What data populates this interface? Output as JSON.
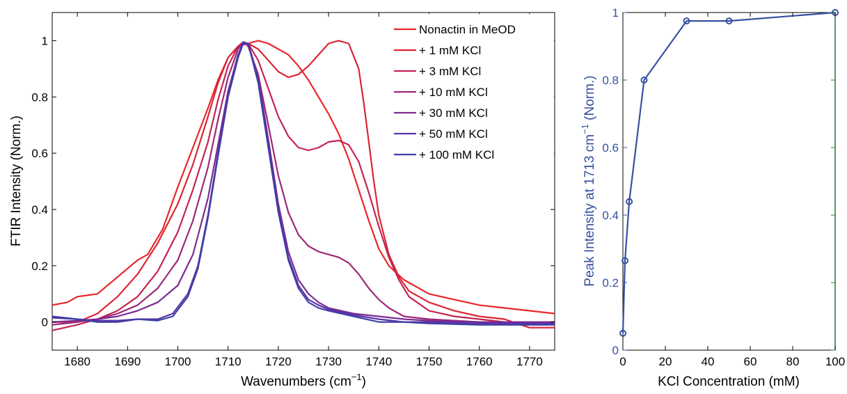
{
  "chart_data": [
    {
      "type": "line",
      "xlabel": "Wavenumbers (cm",
      "xlabel_sup": "−1",
      "xlabel_tail": ")",
      "ylabel": "FTIR Intensity (Norm.)",
      "xlim": [
        1675,
        1775
      ],
      "ylim": [
        -0.1,
        1.1
      ],
      "xticks": [
        "1680",
        "1690",
        "1700",
        "1710",
        "1720",
        "1730",
        "1740",
        "1750",
        "1760",
        "1770"
      ],
      "yticks": [
        "0",
        "0.2",
        "0.4",
        "0.6",
        "0.8",
        "1"
      ],
      "legend_position": "top-right",
      "series": [
        {
          "name": "Nonactin in MeOD",
          "color": "#e8262b",
          "points": [
            [
              1675,
              0.06
            ],
            [
              1678,
              0.07
            ],
            [
              1680,
              0.09
            ],
            [
              1684,
              0.1
            ],
            [
              1688,
              0.16
            ],
            [
              1692,
              0.22
            ],
            [
              1694,
              0.24
            ],
            [
              1697,
              0.33
            ],
            [
              1700,
              0.48
            ],
            [
              1703,
              0.62
            ],
            [
              1706,
              0.76
            ],
            [
              1708,
              0.86
            ],
            [
              1710,
              0.94
            ],
            [
              1712,
              0.98
            ],
            [
              1714,
              0.99
            ],
            [
              1716,
              1.0
            ],
            [
              1718,
              0.99
            ],
            [
              1720,
              0.97
            ],
            [
              1722,
              0.95
            ],
            [
              1724,
              0.91
            ],
            [
              1726,
              0.86
            ],
            [
              1728,
              0.8
            ],
            [
              1730,
              0.74
            ],
            [
              1732,
              0.67
            ],
            [
              1734,
              0.58
            ],
            [
              1736,
              0.47
            ],
            [
              1738,
              0.36
            ],
            [
              1740,
              0.26
            ],
            [
              1742,
              0.2
            ],
            [
              1745,
              0.15
            ],
            [
              1750,
              0.1
            ],
            [
              1755,
              0.08
            ],
            [
              1760,
              0.06
            ],
            [
              1765,
              0.05
            ],
            [
              1770,
              0.04
            ],
            [
              1775,
              0.03
            ]
          ]
        },
        {
          "name": "+ 1 mM KCl",
          "color": "#dc2435",
          "points": [
            [
              1675,
              0.0
            ],
            [
              1680,
              0.0
            ],
            [
              1684,
              0.03
            ],
            [
              1688,
              0.09
            ],
            [
              1692,
              0.17
            ],
            [
              1696,
              0.28
            ],
            [
              1700,
              0.42
            ],
            [
              1703,
              0.56
            ],
            [
              1706,
              0.73
            ],
            [
              1708,
              0.85
            ],
            [
              1710,
              0.94
            ],
            [
              1712,
              0.98
            ],
            [
              1713,
              0.99
            ],
            [
              1714,
              0.99
            ],
            [
              1716,
              0.97
            ],
            [
              1718,
              0.93
            ],
            [
              1720,
              0.89
            ],
            [
              1722,
              0.87
            ],
            [
              1724,
              0.88
            ],
            [
              1726,
              0.91
            ],
            [
              1728,
              0.95
            ],
            [
              1730,
              0.99
            ],
            [
              1732,
              1.0
            ],
            [
              1734,
              0.99
            ],
            [
              1736,
              0.9
            ],
            [
              1737,
              0.78
            ],
            [
              1738,
              0.64
            ],
            [
              1739,
              0.5
            ],
            [
              1740,
              0.38
            ],
            [
              1742,
              0.24
            ],
            [
              1744,
              0.16
            ],
            [
              1746,
              0.11
            ],
            [
              1750,
              0.07
            ],
            [
              1755,
              0.04
            ],
            [
              1760,
              0.02
            ],
            [
              1765,
              0.01
            ],
            [
              1770,
              -0.02
            ],
            [
              1775,
              -0.02
            ]
          ]
        },
        {
          "name": "+ 3 mM KCl",
          "color": "#c42452",
          "points": [
            [
              1675,
              -0.03
            ],
            [
              1680,
              -0.01
            ],
            [
              1684,
              0.01
            ],
            [
              1688,
              0.04
            ],
            [
              1692,
              0.09
            ],
            [
              1696,
              0.18
            ],
            [
              1700,
              0.32
            ],
            [
              1703,
              0.47
            ],
            [
              1706,
              0.64
            ],
            [
              1708,
              0.79
            ],
            [
              1710,
              0.91
            ],
            [
              1712,
              0.98
            ],
            [
              1713,
              0.995
            ],
            [
              1714,
              0.99
            ],
            [
              1716,
              0.93
            ],
            [
              1718,
              0.83
            ],
            [
              1720,
              0.73
            ],
            [
              1722,
              0.66
            ],
            [
              1724,
              0.62
            ],
            [
              1726,
              0.61
            ],
            [
              1728,
              0.62
            ],
            [
              1730,
              0.64
            ],
            [
              1732,
              0.645
            ],
            [
              1734,
              0.63
            ],
            [
              1736,
              0.57
            ],
            [
              1738,
              0.46
            ],
            [
              1740,
              0.34
            ],
            [
              1742,
              0.23
            ],
            [
              1744,
              0.15
            ],
            [
              1746,
              0.09
            ],
            [
              1750,
              0.04
            ],
            [
              1755,
              0.02
            ],
            [
              1760,
              0.01
            ],
            [
              1765,
              0.0
            ],
            [
              1770,
              0.0
            ],
            [
              1775,
              0.0
            ]
          ]
        },
        {
          "name": "+ 10 mM KCl",
          "color": "#9c2877",
          "points": [
            [
              1675,
              -0.01
            ],
            [
              1680,
              0.0
            ],
            [
              1684,
              0.01
            ],
            [
              1688,
              0.03
            ],
            [
              1692,
              0.06
            ],
            [
              1696,
              0.12
            ],
            [
              1700,
              0.22
            ],
            [
              1703,
              0.36
            ],
            [
              1706,
              0.55
            ],
            [
              1708,
              0.72
            ],
            [
              1710,
              0.87
            ],
            [
              1712,
              0.97
            ],
            [
              1713,
              0.995
            ],
            [
              1714,
              0.98
            ],
            [
              1716,
              0.88
            ],
            [
              1718,
              0.7
            ],
            [
              1720,
              0.52
            ],
            [
              1722,
              0.39
            ],
            [
              1724,
              0.31
            ],
            [
              1726,
              0.27
            ],
            [
              1728,
              0.25
            ],
            [
              1730,
              0.24
            ],
            [
              1732,
              0.23
            ],
            [
              1734,
              0.21
            ],
            [
              1736,
              0.17
            ],
            [
              1738,
              0.12
            ],
            [
              1740,
              0.08
            ],
            [
              1742,
              0.05
            ],
            [
              1745,
              0.02
            ],
            [
              1750,
              0.01
            ],
            [
              1760,
              0.0
            ],
            [
              1775,
              0.0
            ]
          ]
        },
        {
          "name": "+ 30 mM KCl",
          "color": "#7c2a92",
          "points": [
            [
              1675,
              0.0
            ],
            [
              1680,
              0.005
            ],
            [
              1684,
              0.01
            ],
            [
              1688,
              0.02
            ],
            [
              1692,
              0.04
            ],
            [
              1696,
              0.07
            ],
            [
              1700,
              0.13
            ],
            [
              1703,
              0.24
            ],
            [
              1706,
              0.44
            ],
            [
              1708,
              0.63
            ],
            [
              1710,
              0.82
            ],
            [
              1712,
              0.95
            ],
            [
              1713,
              0.99
            ],
            [
              1714,
              0.99
            ],
            [
              1716,
              0.87
            ],
            [
              1718,
              0.65
            ],
            [
              1720,
              0.42
            ],
            [
              1722,
              0.25
            ],
            [
              1724,
              0.15
            ],
            [
              1726,
              0.1
            ],
            [
              1728,
              0.07
            ],
            [
              1730,
              0.05
            ],
            [
              1735,
              0.03
            ],
            [
              1740,
              0.02
            ],
            [
              1745,
              0.01
            ],
            [
              1750,
              0.005
            ],
            [
              1760,
              0.0
            ],
            [
              1775,
              0.0
            ]
          ]
        },
        {
          "name": "+ 50 mM KCl",
          "color": "#5a33a6",
          "points": [
            [
              1675,
              0.015
            ],
            [
              1680,
              0.01
            ],
            [
              1684,
              0.005
            ],
            [
              1688,
              0.005
            ],
            [
              1692,
              0.01
            ],
            [
              1696,
              0.01
            ],
            [
              1699,
              0.03
            ],
            [
              1702,
              0.1
            ],
            [
              1704,
              0.2
            ],
            [
              1706,
              0.38
            ],
            [
              1708,
              0.6
            ],
            [
              1710,
              0.81
            ],
            [
              1712,
              0.95
            ],
            [
              1713,
              0.995
            ],
            [
              1714,
              0.99
            ],
            [
              1716,
              0.86
            ],
            [
              1718,
              0.63
            ],
            [
              1720,
              0.4
            ],
            [
              1722,
              0.23
            ],
            [
              1724,
              0.13
            ],
            [
              1726,
              0.08
            ],
            [
              1728,
              0.06
            ],
            [
              1730,
              0.045
            ],
            [
              1735,
              0.025
            ],
            [
              1740,
              0.01
            ],
            [
              1745,
              0.0
            ],
            [
              1750,
              0.0
            ],
            [
              1760,
              -0.005
            ],
            [
              1775,
              -0.005
            ]
          ]
        },
        {
          "name": "+ 100 mM KCl",
          "color": "#3e3fa6",
          "points": [
            [
              1675,
              0.02
            ],
            [
              1680,
              0.01
            ],
            [
              1684,
              0.0
            ],
            [
              1688,
              0.0
            ],
            [
              1692,
              0.01
            ],
            [
              1696,
              0.005
            ],
            [
              1699,
              0.02
            ],
            [
              1702,
              0.09
            ],
            [
              1704,
              0.19
            ],
            [
              1706,
              0.37
            ],
            [
              1708,
              0.59
            ],
            [
              1710,
              0.8
            ],
            [
              1712,
              0.94
            ],
            [
              1713,
              0.99
            ],
            [
              1714,
              0.99
            ],
            [
              1716,
              0.85
            ],
            [
              1718,
              0.62
            ],
            [
              1720,
              0.39
            ],
            [
              1722,
              0.22
            ],
            [
              1724,
              0.12
            ],
            [
              1726,
              0.07
            ],
            [
              1728,
              0.05
            ],
            [
              1730,
              0.04
            ],
            [
              1735,
              0.02
            ],
            [
              1740,
              0.0
            ],
            [
              1745,
              0.0
            ],
            [
              1750,
              -0.005
            ],
            [
              1760,
              -0.01
            ],
            [
              1775,
              -0.01
            ]
          ]
        }
      ]
    },
    {
      "type": "line",
      "xlabel": "KCl Concentration (mM)",
      "ylabel": "Peak Intensity at 1713 cm",
      "ylabel_sup": "−1",
      "ylabel_tail": " (Norm.)",
      "xlim": [
        0,
        100
      ],
      "ylim": [
        0,
        1
      ],
      "xticks": [
        "0",
        "20",
        "40",
        "60",
        "80",
        "100"
      ],
      "yticks": [
        "0",
        "0.2",
        "0.4",
        "0.6",
        "0.8",
        "1"
      ],
      "colors": {
        "series": "#3651a0",
        "right_axis": "#1f7a3a"
      },
      "series": [
        {
          "x": [
            0,
            1,
            3,
            10,
            30,
            50,
            100
          ],
          "y": [
            0.05,
            0.265,
            0.44,
            0.8,
            0.975,
            0.975,
            1.0
          ]
        }
      ]
    }
  ]
}
